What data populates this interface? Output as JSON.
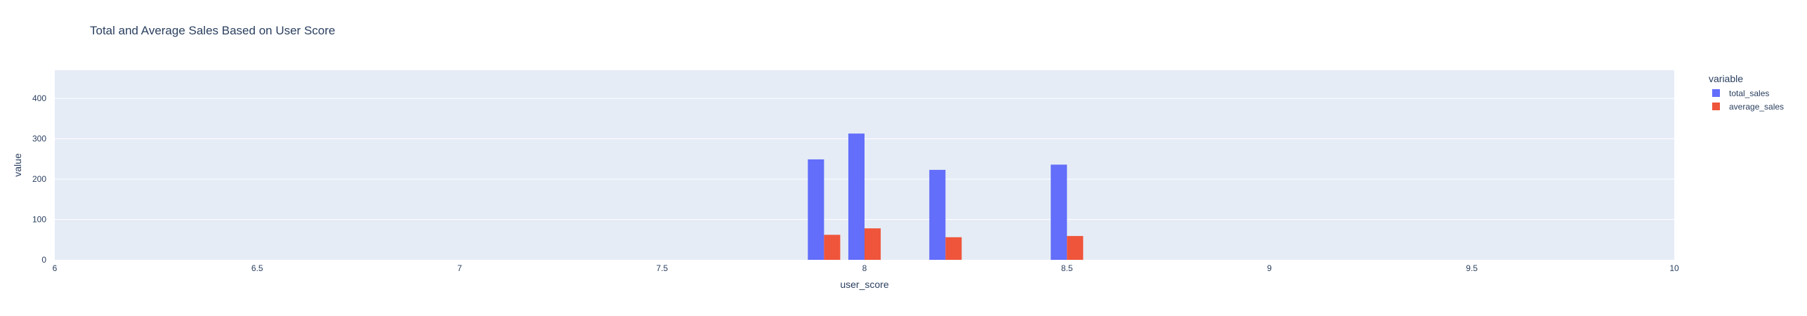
{
  "chart_data": {
    "type": "bar",
    "title": "Total and Average Sales Based on User Score",
    "xlabel": "user_score",
    "ylabel": "value",
    "xlim": [
      6,
      10
    ],
    "ylim": [
      0,
      470
    ],
    "x_ticks": [
      "6",
      "6.5",
      "7",
      "7.5",
      "8",
      "8.5",
      "9",
      "9.5",
      "10"
    ],
    "y_ticks": [
      "0",
      "100",
      "200",
      "300",
      "400"
    ],
    "grid": true,
    "legend_title": "variable",
    "legend_position": "top-right",
    "x": [
      7.9,
      8.0,
      8.2,
      8.5
    ],
    "series": [
      {
        "name": "total_sales",
        "color": "#636efa",
        "values": [
          249,
          313,
          223,
          236
        ]
      },
      {
        "name": "average_sales",
        "color": "#ef553b",
        "values": [
          62,
          78,
          56,
          59
        ]
      }
    ]
  }
}
